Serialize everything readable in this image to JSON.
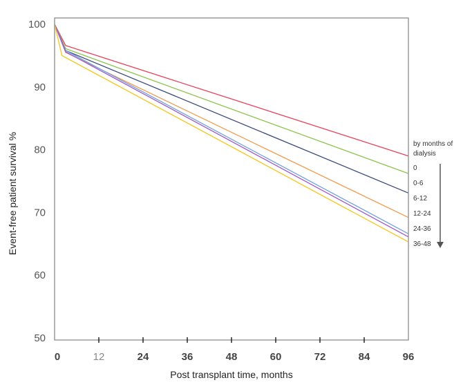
{
  "chart_data": {
    "type": "line",
    "xlabel": "Post transplant time, months",
    "ylabel": "Event-free patient survival %",
    "xlim": [
      0,
      96
    ],
    "ylim": [
      50,
      100
    ],
    "x_ticks": [
      0,
      12,
      24,
      36,
      48,
      60,
      72,
      84,
      96
    ],
    "y_ticks": [
      50,
      60,
      70,
      80,
      90,
      100
    ],
    "grid": false,
    "legend_title": "by months of dialysis",
    "legend_position": "right",
    "legend_arrow": "down",
    "series": [
      {
        "name": "0",
        "color": "#e8405a",
        "x": [
          0,
          3,
          96
        ],
        "y": [
          100,
          96.6,
          79.0
        ]
      },
      {
        "name": "0-6",
        "color": "#8bc34a",
        "x": [
          0,
          3,
          96
        ],
        "y": [
          100,
          96.1,
          76.2
        ]
      },
      {
        "name": "6-12",
        "color": "#3b4a7a",
        "x": [
          0,
          3,
          96
        ],
        "y": [
          100,
          95.8,
          73.1
        ]
      },
      {
        "name": "12-24",
        "color": "#f2994a",
        "x": [
          0,
          3,
          96
        ],
        "y": [
          100,
          95.5,
          69.2
        ]
      },
      {
        "name": "24-36",
        "color": "#6fa0e0",
        "x": [
          0,
          3,
          96
        ],
        "y": [
          100,
          95.8,
          66.6
        ]
      },
      {
        "name": "36-48",
        "color": "#9b59d0",
        "x": [
          0,
          3,
          96
        ],
        "y": [
          100,
          95.6,
          66.1
        ]
      },
      {
        "color": "#f5c518",
        "x": [
          0,
          2,
          96
        ],
        "y": [
          100,
          95.0,
          65.3
        ]
      }
    ]
  }
}
